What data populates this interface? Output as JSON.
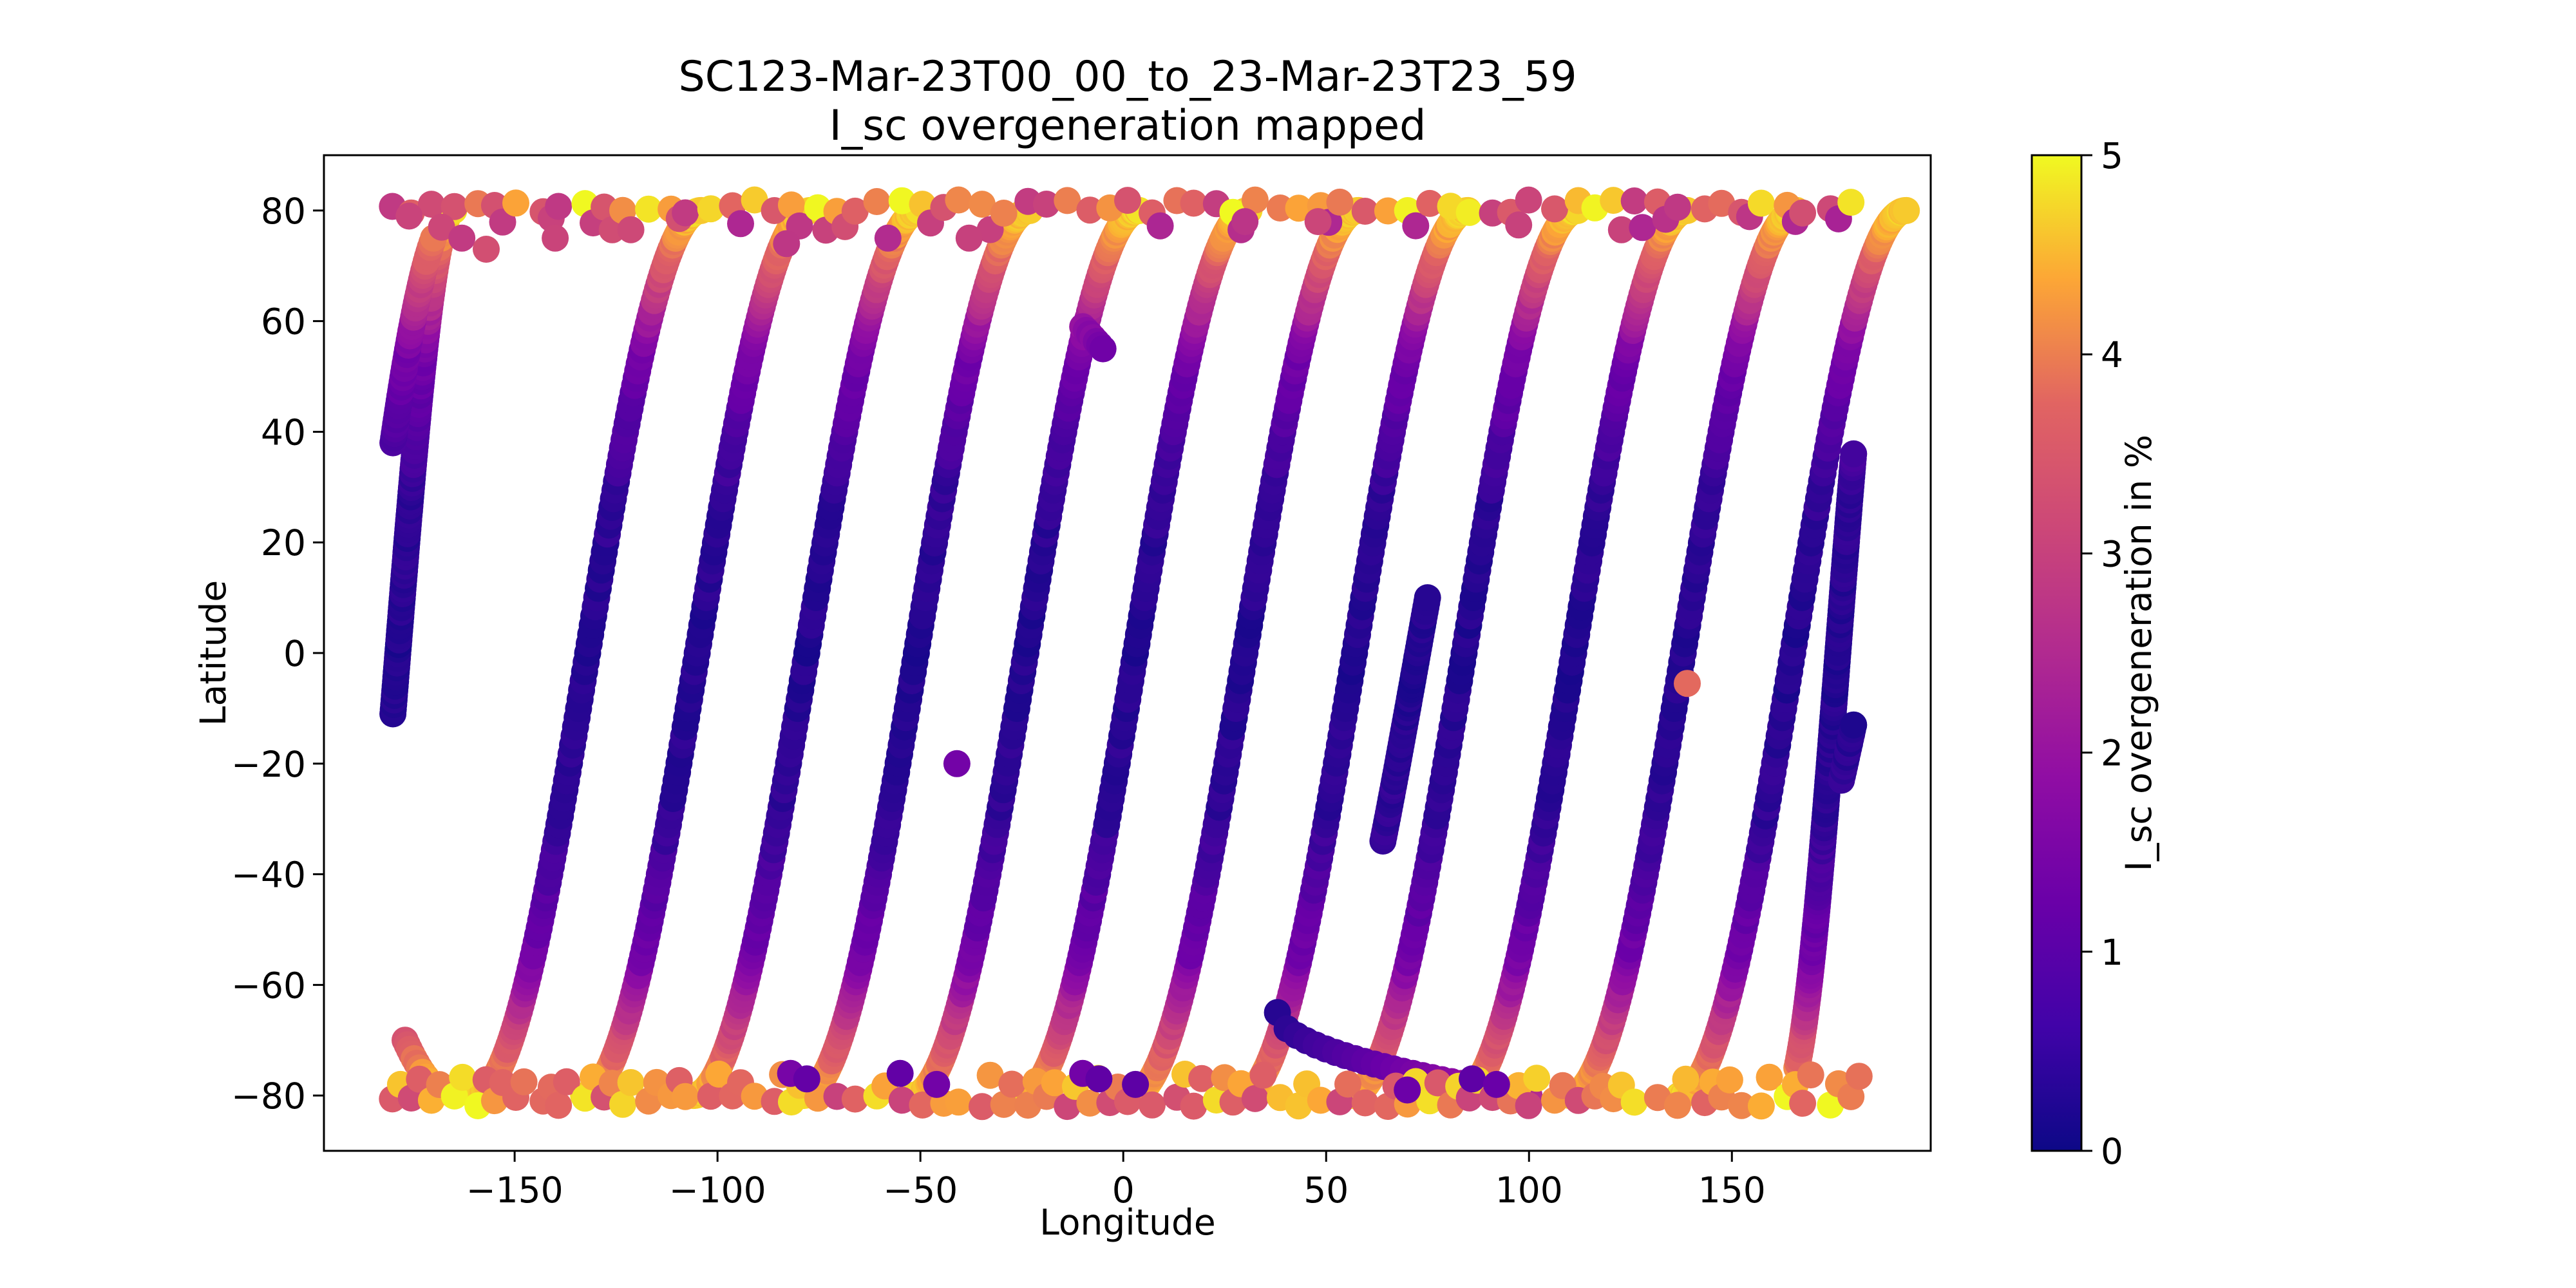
{
  "chart_data": {
    "type": "scatter",
    "title": "SC123-Mar-23T00_00_to_23-Mar-23T23_59",
    "subtitle": "I_sc overgeneration mapped",
    "xlabel": "Longitude",
    "ylabel": "Latitude",
    "xlim": [
      -197,
      199
    ],
    "ylim": [
      -90,
      90
    ],
    "xticks": [
      -150,
      -100,
      -50,
      0,
      50,
      100,
      150
    ],
    "yticks": [
      -80,
      -60,
      -40,
      -20,
      0,
      20,
      40,
      60,
      80
    ],
    "xtick_labels": [
      "−150",
      "−100",
      "−50",
      "0",
      "50",
      "100",
      "150"
    ],
    "ytick_labels": [
      "−80",
      "−60",
      "−40",
      "−20",
      "0",
      "20",
      "40",
      "60",
      "80"
    ],
    "grid": false,
    "colormap": "plasma",
    "colorbar": {
      "label": "I_sc overgeneration in %",
      "range": [
        0,
        5
      ],
      "ticks": [
        0,
        1,
        2,
        3,
        4,
        5
      ],
      "tick_labels": [
        "0",
        "1",
        "2",
        "3",
        "4",
        "5"
      ]
    },
    "orbit_tracks": {
      "description": "ascending ground tracks, lat = 80*sin(...) from -80 to +80",
      "track_center_longitudes": [
        -132,
        -105,
        -78,
        -51,
        -24,
        3,
        30,
        57,
        84,
        111,
        138,
        165
      ],
      "lon_span": 56,
      "lat_range": [
        -80,
        80
      ]
    },
    "partial_tracks": [
      {
        "lon": [
          -180,
          -165
        ],
        "lat": [
          -11,
          80
        ],
        "value_profile": "track"
      },
      {
        "lon": [
          -177,
          -165
        ],
        "lat": [
          -70,
          -80
        ],
        "value_profile": "track"
      },
      {
        "lon": [
          -180,
          -170
        ],
        "lat": [
          38,
          75
        ],
        "value_profile": "track"
      },
      {
        "lon": [
          166,
          180
        ],
        "lat": [
          -75,
          36
        ],
        "value_profile": "track"
      },
      {
        "lon": [
          177,
          180
        ],
        "lat": [
          -23,
          -13
        ],
        "value_profile": "track"
      },
      {
        "lon": [
          -10,
          -5
        ],
        "lat": [
          59,
          55
        ],
        "value_profile": "track"
      },
      {
        "lon": [
          64,
          75
        ],
        "lat": [
          -34,
          10
        ],
        "value_profile": "track"
      }
    ],
    "descending_arc": {
      "lon": [
        38,
        100
      ],
      "lat": [
        -65,
        -80
      ],
      "values_start_end": [
        0.3,
        2.5
      ]
    },
    "isolated_points": [
      {
        "lon": -41,
        "lat": -20,
        "value": 1.4
      },
      {
        "lon": 139,
        "lat": -5.5,
        "value": 3.8
      }
    ],
    "band_points": {
      "north": {
        "lat_range": [
          74,
          82
        ],
        "value_range": [
          2.2,
          5.0
        ]
      },
      "south": {
        "lat_range": [
          -82,
          -76
        ],
        "value_range": [
          1.0,
          5.0
        ]
      }
    }
  }
}
